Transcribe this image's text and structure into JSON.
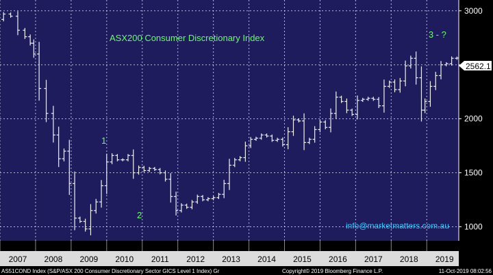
{
  "chart_data": {
    "type": "ohlc",
    "title": "ASX200 Consumer Discretionary Index",
    "watermark": "info@marketmatters.com.au",
    "footer_left": "AS51COND Index (S&P/ASX 200 Consumer Discretionary Sector GICS Level 1 Index) Gr",
    "footer_mid": "Copyright© 2019 Bloomberg Finance L.P.",
    "footer_right": "11-Oct-2019 08:02:56",
    "last_value_label": "2562.1",
    "x_range": [
      2007.0,
      2019.9
    ],
    "x_tick_labels": [
      "2007",
      "2008",
      "2009",
      "2010",
      "2011",
      "2012",
      "2013",
      "2014",
      "2015",
      "2016",
      "2017",
      "2018",
      "2019"
    ],
    "y_range": [
      870,
      3100
    ],
    "y_ticks": [
      1000,
      1500,
      2000,
      2500,
      3000
    ],
    "y_tick_labels": [
      "1000",
      "1500",
      "2000",
      "2500",
      "3000"
    ],
    "annotations": [
      {
        "text": "1",
        "x": 2009.85,
        "y": 1770
      },
      {
        "text": "2",
        "x": 2010.85,
        "y": 1080
      },
      {
        "text": "3 - ?",
        "x": 2019.05,
        "y": 2750
      }
    ],
    "series": [
      {
        "values": [
          [
            2006.8,
            2820
          ],
          [
            2006.95,
            2920
          ],
          [
            2007.1,
            2970
          ],
          [
            2007.3,
            2950
          ],
          [
            2007.5,
            2820
          ],
          [
            2007.7,
            2760
          ],
          [
            2007.85,
            2700
          ],
          [
            2007.95,
            2600
          ],
          [
            2008.1,
            2280
          ],
          [
            2008.3,
            2050
          ],
          [
            2008.5,
            1850
          ],
          [
            2008.65,
            1630
          ],
          [
            2008.8,
            1700
          ],
          [
            2008.95,
            1400
          ],
          [
            2009.1,
            1080
          ],
          [
            2009.25,
            1050
          ],
          [
            2009.4,
            980
          ],
          [
            2009.55,
            1150
          ],
          [
            2009.7,
            1230
          ],
          [
            2009.85,
            1380
          ],
          [
            2010.0,
            1600
          ],
          [
            2010.15,
            1660
          ],
          [
            2010.3,
            1620
          ],
          [
            2010.45,
            1620
          ],
          [
            2010.6,
            1660
          ],
          [
            2010.75,
            1500
          ],
          [
            2010.9,
            1550
          ],
          [
            2011.05,
            1520
          ],
          [
            2011.2,
            1540
          ],
          [
            2011.35,
            1530
          ],
          [
            2011.5,
            1500
          ],
          [
            2011.65,
            1440
          ],
          [
            2011.8,
            1280
          ],
          [
            2011.95,
            1150
          ],
          [
            2012.1,
            1200
          ],
          [
            2012.25,
            1180
          ],
          [
            2012.4,
            1230
          ],
          [
            2012.55,
            1280
          ],
          [
            2012.7,
            1250
          ],
          [
            2012.85,
            1260
          ],
          [
            2013.0,
            1270
          ],
          [
            2013.15,
            1300
          ],
          [
            2013.3,
            1400
          ],
          [
            2013.45,
            1570
          ],
          [
            2013.6,
            1620
          ],
          [
            2013.75,
            1640
          ],
          [
            2013.9,
            1750
          ],
          [
            2014.05,
            1810
          ],
          [
            2014.2,
            1820
          ],
          [
            2014.35,
            1850
          ],
          [
            2014.5,
            1840
          ],
          [
            2014.65,
            1800
          ],
          [
            2014.8,
            1810
          ],
          [
            2014.95,
            1760
          ],
          [
            2015.1,
            1880
          ],
          [
            2015.25,
            1990
          ],
          [
            2015.4,
            1980
          ],
          [
            2015.55,
            1780
          ],
          [
            2015.7,
            1810
          ],
          [
            2015.85,
            1900
          ],
          [
            2016.0,
            1970
          ],
          [
            2016.15,
            1920
          ],
          [
            2016.3,
            2050
          ],
          [
            2016.45,
            2200
          ],
          [
            2016.6,
            2160
          ],
          [
            2016.75,
            2080
          ],
          [
            2016.9,
            2040
          ],
          [
            2017.05,
            2170
          ],
          [
            2017.2,
            2180
          ],
          [
            2017.35,
            2190
          ],
          [
            2017.5,
            2180
          ],
          [
            2017.65,
            2120
          ],
          [
            2017.8,
            2300
          ],
          [
            2017.95,
            2340
          ],
          [
            2018.1,
            2270
          ],
          [
            2018.25,
            2350
          ],
          [
            2018.4,
            2490
          ],
          [
            2018.55,
            2560
          ],
          [
            2018.7,
            2380
          ],
          [
            2018.85,
            2080
          ],
          [
            2018.95,
            2160
          ],
          [
            2019.1,
            2300
          ],
          [
            2019.25,
            2400
          ],
          [
            2019.4,
            2500
          ],
          [
            2019.55,
            2510
          ],
          [
            2019.7,
            2560
          ],
          [
            2019.85,
            2562.1
          ]
        ]
      }
    ]
  }
}
